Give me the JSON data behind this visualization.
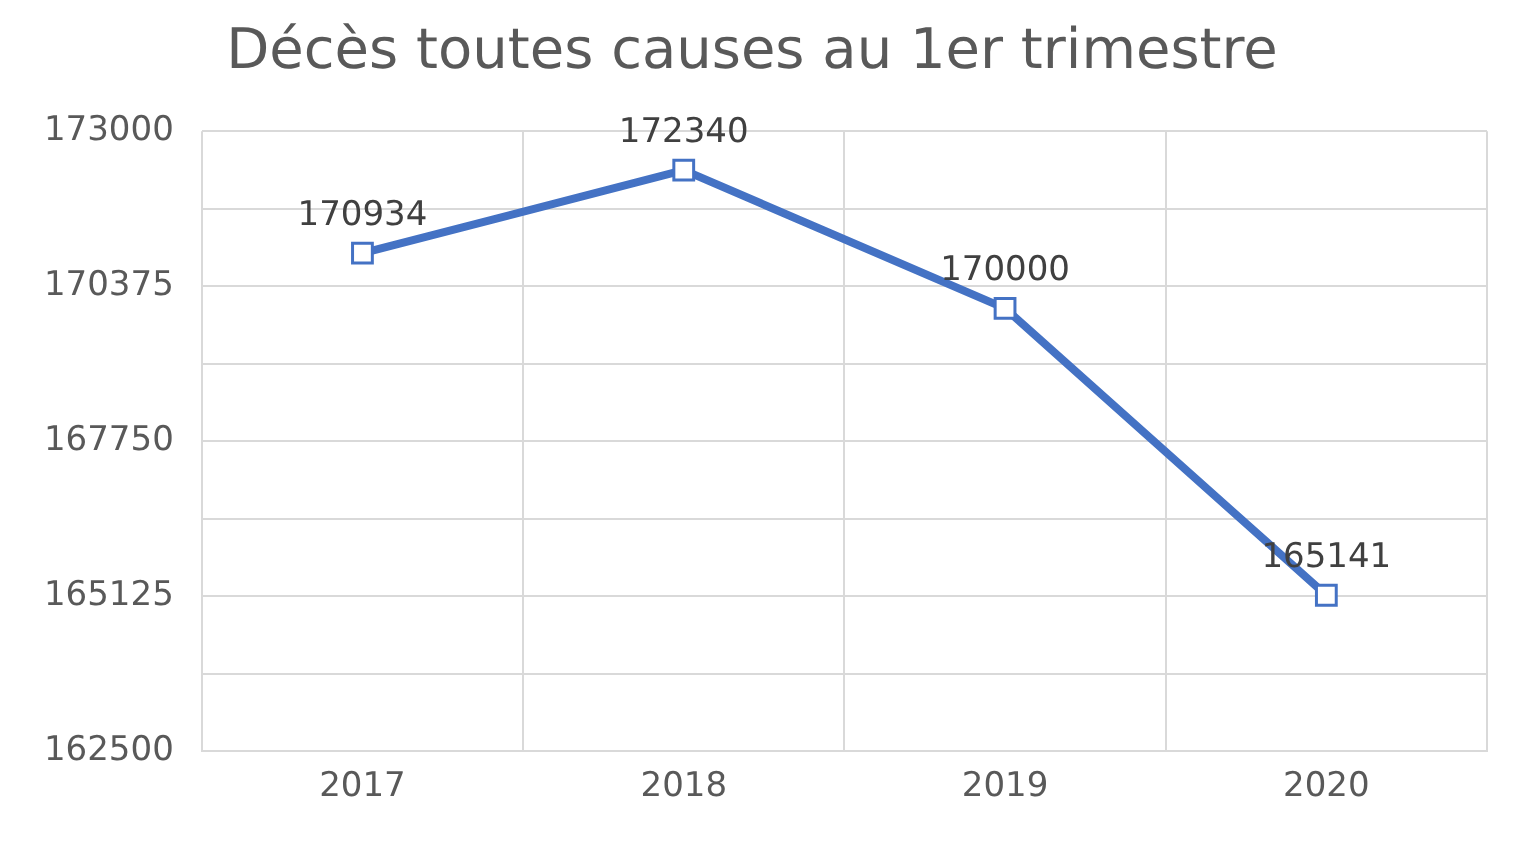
{
  "chart_data": {
    "type": "line",
    "title": "Décès toutes causes au 1er trimestre",
    "categories": [
      "2017",
      "2018",
      "2019",
      "2020"
    ],
    "series": [
      {
        "color": "#4472c4",
        "values": [
          170934,
          172340,
          170000,
          165141
        ]
      }
    ],
    "ylim": [
      162500,
      173000
    ],
    "yticks": [
      162500,
      {
        "value": 163812.5,
        "label": null
      },
      165125,
      {
        "value": 166437.5,
        "label": null
      },
      167750,
      {
        "value": 169062.5,
        "label": null
      },
      170375,
      {
        "value": 171687.5,
        "label": null
      },
      173000
    ],
    "grid": true,
    "marker": "square",
    "line_style": "solid",
    "data_labels": true,
    "legend": false
  }
}
